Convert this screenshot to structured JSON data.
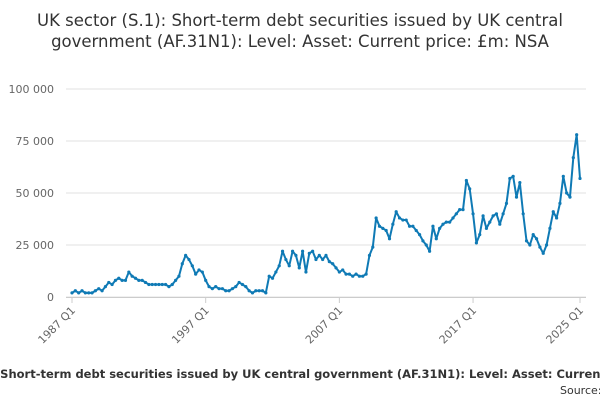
{
  "chart_data": {
    "type": "line",
    "title": "UK sector (S.1): Short-term debt securities issued by UK central government (AF.31N1): Level: Asset: Current price: £m: NSA",
    "source_label": "Source:",
    "categories": [
      "1987 Q1",
      null,
      null,
      null,
      null,
      null,
      null,
      null,
      null,
      null,
      null,
      null,
      null,
      null,
      null,
      null,
      null,
      null,
      null,
      null,
      null,
      null,
      null,
      null,
      null,
      null,
      null,
      null,
      null,
      null,
      null,
      null,
      null,
      null,
      null,
      null,
      null,
      null,
      null,
      null,
      "1997 Q1",
      null,
      null,
      null,
      null,
      null,
      null,
      null,
      null,
      null,
      null,
      null,
      null,
      null,
      null,
      null,
      null,
      null,
      null,
      null,
      null,
      null,
      null,
      null,
      null,
      null,
      null,
      null,
      null,
      null,
      null,
      null,
      null,
      null,
      null,
      null,
      null,
      null,
      null,
      null,
      "2007 Q1",
      null,
      null,
      null,
      null,
      null,
      null,
      null,
      null,
      null,
      null,
      null,
      null,
      null,
      null,
      null,
      null,
      null,
      null,
      null,
      null,
      null,
      null,
      null,
      null,
      null,
      null,
      null,
      null,
      null,
      null,
      null,
      null,
      null,
      null,
      null,
      null,
      null,
      null,
      null,
      "2017 Q1",
      null,
      null,
      null,
      null,
      null,
      null,
      null,
      null,
      null,
      null,
      null,
      null,
      null,
      null,
      null,
      null,
      null,
      null,
      null,
      null,
      null,
      null,
      null,
      null,
      null,
      null,
      null,
      null,
      null,
      null,
      null,
      "2025 Q1"
    ],
    "series": [
      {
        "name": "AF.31N1",
        "color": "#0f7ab5",
        "values": [
          2000,
          3000,
          2000,
          3000,
          2000,
          2000,
          2000,
          3000,
          4000,
          3000,
          5000,
          7000,
          6000,
          8000,
          9000,
          8000,
          8000,
          12000,
          10000,
          9000,
          8000,
          8000,
          7000,
          6000,
          6000,
          6000,
          6000,
          6000,
          6000,
          5000,
          6000,
          8000,
          10000,
          16000,
          20000,
          18000,
          15000,
          11000,
          13000,
          12000,
          8000,
          5000,
          4000,
          5000,
          4000,
          4000,
          3000,
          3000,
          4000,
          5000,
          7000,
          6000,
          5000,
          3000,
          2000,
          3000,
          3000,
          3000,
          2000,
          10000,
          9000,
          12000,
          15000,
          22000,
          18000,
          15000,
          22000,
          20000,
          14000,
          22000,
          12000,
          21000,
          22000,
          18000,
          20000,
          18000,
          20000,
          17000,
          16000,
          14000,
          12000,
          13000,
          11000,
          11000,
          10000,
          11000,
          10000,
          10000,
          11000,
          20000,
          24000,
          38000,
          34000,
          33000,
          32000,
          28000,
          35000,
          41000,
          38000,
          37000,
          37000,
          34000,
          34000,
          32000,
          30000,
          27000,
          25000,
          22000,
          34000,
          28000,
          33000,
          35000,
          36000,
          36000,
          38000,
          40000,
          42000,
          42000,
          56000,
          52000,
          40000,
          26000,
          30000,
          39000,
          33000,
          36000,
          39000,
          40000,
          35000,
          40000,
          45000,
          57000,
          58000,
          48000,
          55000,
          40000,
          27000,
          25000,
          30000,
          28000,
          24000,
          21000,
          25000,
          33000,
          41000,
          38000,
          45000,
          58000,
          50000,
          48000,
          67000,
          78000,
          57000
        ]
      }
    ],
    "ylim": [
      0,
      100000
    ],
    "yticks": [
      0,
      {
        "value": 25000,
        "label": "25 000"
      },
      {
        "value": 50000,
        "label": "50 000"
      },
      {
        "value": 75000,
        "label": "75 000"
      },
      {
        "value": 100000,
        "label": "100 000"
      }
    ],
    "grid": true
  }
}
